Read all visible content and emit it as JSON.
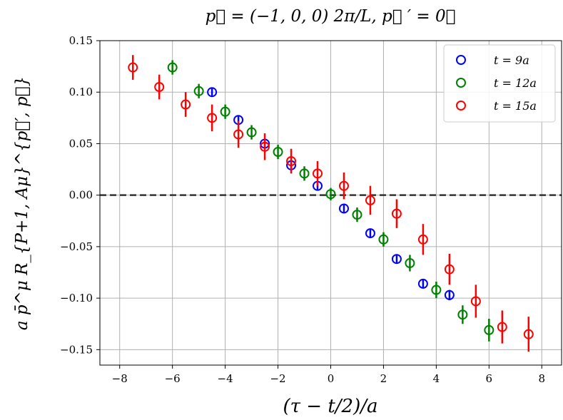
{
  "chart_data": {
    "type": "scatter",
    "title": "p⃗ = (−1, 0, 0) 2π/L,  p⃗ ′ = 0⃗",
    "xlabel": "(τ − t/2)/a",
    "ylabel": "a p̄^μ R_{P+1, Aμ}^{p⃗′, p⃗}",
    "xlim": [
      -8.75,
      8.75
    ],
    "ylim": [
      -0.165,
      0.15
    ],
    "xticks": [
      -8,
      -6,
      -4,
      -2,
      0,
      2,
      4,
      6,
      8
    ],
    "xtick_labels": [
      "−8",
      "−6",
      "−4",
      "−2",
      "0",
      "2",
      "4",
      "6",
      "8"
    ],
    "yticks": [
      0.15,
      0.1,
      0.05,
      0.0,
      -0.05,
      -0.1,
      -0.15
    ],
    "ytick_labels": [
      "0.15",
      "0.10",
      "0.05",
      "0.00",
      "−0.05",
      "−0.10",
      "−0.15"
    ],
    "grid": true,
    "reference_line": {
      "y": 0,
      "style": "dashed"
    },
    "legend_position": "top-right",
    "series": [
      {
        "name": "t = 9a",
        "color": "#0000ff",
        "x": [
          -4.5,
          -3.5,
          -2.5,
          -1.5,
          -0.5,
          0.5,
          1.5,
          2.5,
          3.5,
          4.5
        ],
        "y": [
          0.1,
          0.073,
          0.05,
          0.029,
          0.009,
          -0.013,
          -0.037,
          -0.062,
          -0.086,
          -0.097
        ],
        "err": [
          0.004,
          0.004,
          0.004,
          0.004,
          0.004,
          0.004,
          0.004,
          0.004,
          0.004,
          0.005
        ]
      },
      {
        "name": "t = 12a",
        "color": "#008000",
        "x": [
          -6,
          -5,
          -4,
          -3,
          -2,
          -1,
          0,
          1,
          2,
          3,
          4,
          5,
          6
        ],
        "y": [
          0.124,
          0.101,
          0.081,
          0.061,
          0.042,
          0.021,
          0.001,
          -0.019,
          -0.043,
          -0.066,
          -0.092,
          -0.116,
          -0.131
        ],
        "err": [
          0.007,
          0.007,
          0.007,
          0.007,
          0.007,
          0.007,
          0.006,
          0.007,
          0.007,
          0.008,
          0.008,
          0.009,
          0.011
        ]
      },
      {
        "name": "t = 15a",
        "color": "#ff0000",
        "x": [
          -7.5,
          -6.5,
          -5.5,
          -4.5,
          -3.5,
          -2.5,
          -1.5,
          -0.5,
          0.5,
          1.5,
          2.5,
          3.5,
          4.5,
          5.5,
          6.5,
          7.5
        ],
        "y": [
          0.124,
          0.105,
          0.088,
          0.075,
          0.059,
          0.047,
          0.033,
          0.021,
          0.009,
          -0.005,
          -0.018,
          -0.043,
          -0.072,
          -0.103,
          -0.128,
          -0.135
        ],
        "err": [
          0.012,
          0.012,
          0.012,
          0.013,
          0.013,
          0.013,
          0.012,
          0.012,
          0.013,
          0.014,
          0.014,
          0.015,
          0.015,
          0.016,
          0.016,
          0.017
        ]
      }
    ]
  }
}
